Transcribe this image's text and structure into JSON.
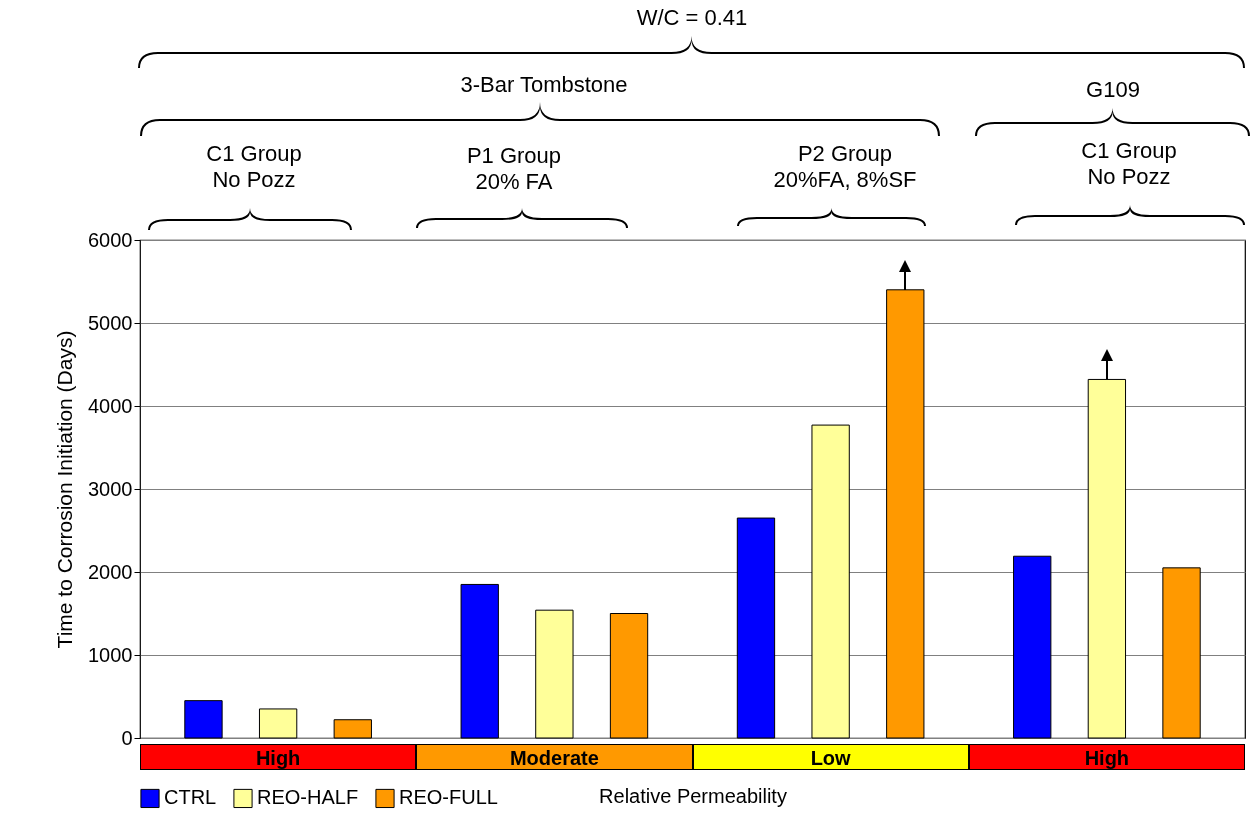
{
  "chart_data": {
    "type": "bar",
    "xlabel": "Relative Permeability",
    "ylabel": "Time to Corrosion Initiation (Days)",
    "categories": [
      "High",
      "Moderate",
      "Low",
      "High"
    ],
    "series": [
      {
        "name": "CTRL",
        "color": "#0000ff",
        "values": [
          450,
          1850,
          2650,
          2190
        ]
      },
      {
        "name": "REO-HALF",
        "color": "#ffff99",
        "values": [
          350,
          1540,
          3770,
          4320
        ]
      },
      {
        "name": "REO-FULL",
        "color": "#ff9900",
        "values": [
          220,
          1500,
          5400,
          2050
        ]
      }
    ],
    "ylim": [
      0,
      6000
    ],
    "yticks": [
      0,
      1000,
      2000,
      3000,
      4000,
      5000,
      6000
    ],
    "grid": "y",
    "legend": "bottom left",
    "annotations": [
      "W/C = 0.41",
      "3-Bar Tombstone",
      "G109",
      "C1 Group\nNo Pozz",
      "P1 Group\n20% FA",
      "P2 Group\n20%FA, 8%SF",
      "C1 Group\nNo Pozz"
    ]
  }
}
